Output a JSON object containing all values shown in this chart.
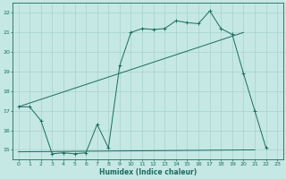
{
  "xlabel": "Humidex (Indice chaleur)",
  "bg_color": "#c5e8e5",
  "grid_color": "#9fccc8",
  "line_color": "#1b6b5e",
  "xlim": [
    -0.5,
    23.5
  ],
  "ylim": [
    14.5,
    22.5
  ],
  "yticks": [
    15,
    16,
    17,
    18,
    19,
    20,
    21,
    22
  ],
  "xticks": [
    0,
    1,
    2,
    3,
    4,
    5,
    6,
    7,
    8,
    9,
    10,
    11,
    12,
    13,
    14,
    15,
    16,
    17,
    18,
    19,
    20,
    21,
    22,
    23
  ],
  "line1_x": [
    0,
    1,
    2,
    3,
    4,
    5,
    6,
    7,
    8,
    9,
    10,
    11,
    12,
    13,
    14,
    15,
    16,
    17,
    18,
    19,
    20,
    21,
    22
  ],
  "line1_y": [
    17.2,
    17.2,
    16.5,
    14.8,
    14.85,
    14.8,
    14.85,
    16.3,
    15.1,
    19.3,
    21.0,
    21.2,
    21.15,
    21.2,
    21.6,
    21.5,
    21.45,
    22.1,
    21.2,
    20.9,
    18.9,
    17.0,
    15.1
  ],
  "line2_x": [
    0,
    20
  ],
  "line2_y": [
    17.2,
    21.0
  ],
  "line3_x": [
    0,
    21
  ],
  "line3_y": [
    14.9,
    15.0
  ],
  "figwidth": 3.2,
  "figheight": 2.0,
  "dpi": 100
}
